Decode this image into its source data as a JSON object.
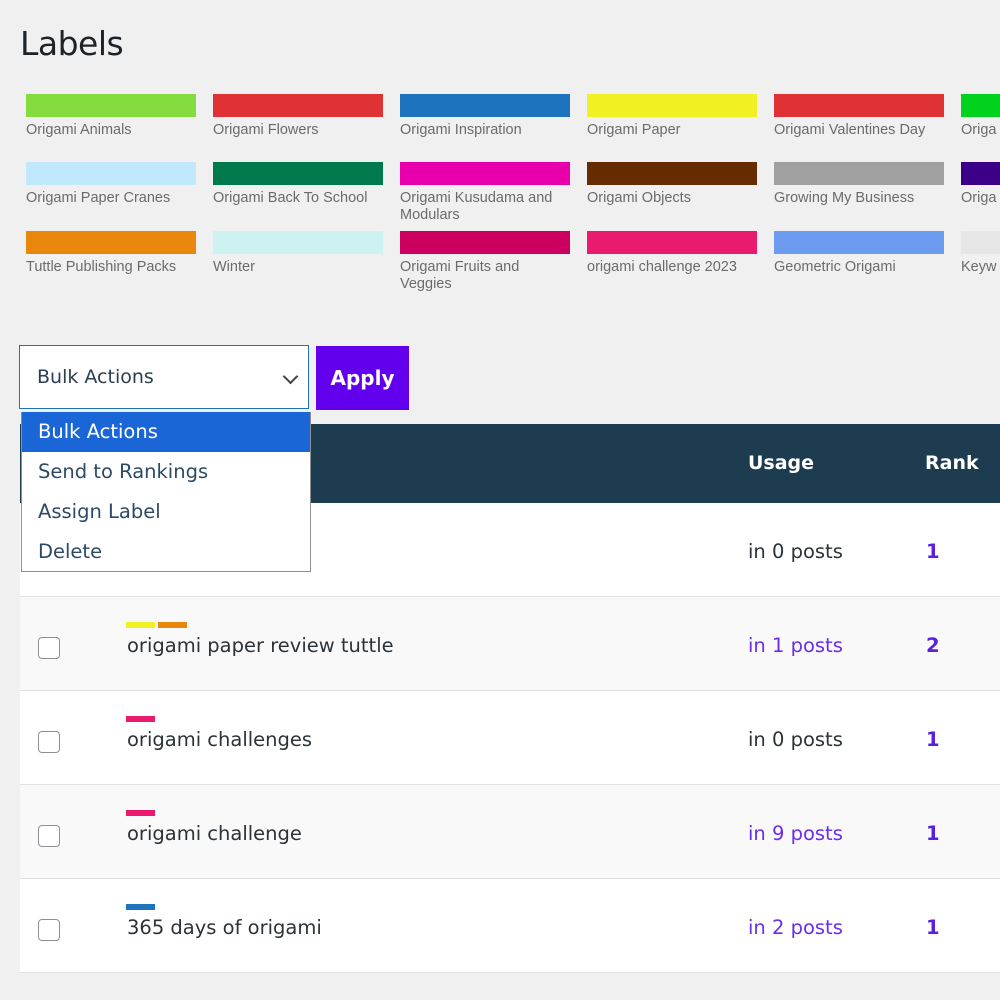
{
  "title": "Labels",
  "labels": [
    {
      "name": "Origami Animals",
      "color": "#84dc3f"
    },
    {
      "name": "Origami Flowers",
      "color": "#e03234"
    },
    {
      "name": "Origami Inspiration",
      "color": "#1e73be"
    },
    {
      "name": "Origami Paper",
      "color": "#f0f022"
    },
    {
      "name": "Origami Valentines Day",
      "color": "#e03234"
    },
    {
      "name": "Origa",
      "color": "#00d21e"
    },
    {
      "name": "Origami Paper Cranes",
      "color": "#c2e8fc"
    },
    {
      "name": "Origami Back To School",
      "color": "#007a4c"
    },
    {
      "name": "Origami Kusudama and Modulars",
      "color": "#e800ac"
    },
    {
      "name": "Origami Objects",
      "color": "#672b00"
    },
    {
      "name": "Growing My Business",
      "color": "#a0a0a0"
    },
    {
      "name": "Origa",
      "color": "#3c0088"
    },
    {
      "name": "Tuttle Publishing Packs",
      "color": "#e8870c"
    },
    {
      "name": "Winter",
      "color": "#ccf2f2"
    },
    {
      "name": "Origami Fruits and Veggies",
      "color": "#cc005e"
    },
    {
      "name": "origami challenge 2023",
      "color": "#ea1a6e"
    },
    {
      "name": "Geometric Origami",
      "color": "#6b9cf0"
    },
    {
      "name": "Keyw",
      "color": "#e6e6e6"
    }
  ],
  "bulk": {
    "selected": "Bulk Actions",
    "options": [
      "Bulk Actions",
      "Send to Rankings",
      "Assign Label",
      "Delete"
    ],
    "apply": "Apply"
  },
  "table": {
    "headers": {
      "usage": "Usage",
      "rank": "Rank"
    },
    "rows": [
      {
        "name": "",
        "usage": "in 0 posts",
        "link": false,
        "rank": "1",
        "bars": []
      },
      {
        "name": "origami paper review tuttle",
        "usage": "in 1 posts",
        "link": true,
        "rank": "2",
        "bars": [
          "#f0f022",
          "#e8870c"
        ]
      },
      {
        "name": "origami challenges",
        "usage": "in 0 posts",
        "link": false,
        "rank": "1",
        "bars": [
          "#ea1a6e"
        ]
      },
      {
        "name": "origami challenge",
        "usage": "in 9 posts",
        "link": true,
        "rank": "1",
        "bars": [
          "#ea1a6e"
        ]
      },
      {
        "name": "365 days of origami",
        "usage": "in 2 posts",
        "link": true,
        "rank": "1",
        "bars": [
          "#1e73be"
        ]
      }
    ]
  }
}
